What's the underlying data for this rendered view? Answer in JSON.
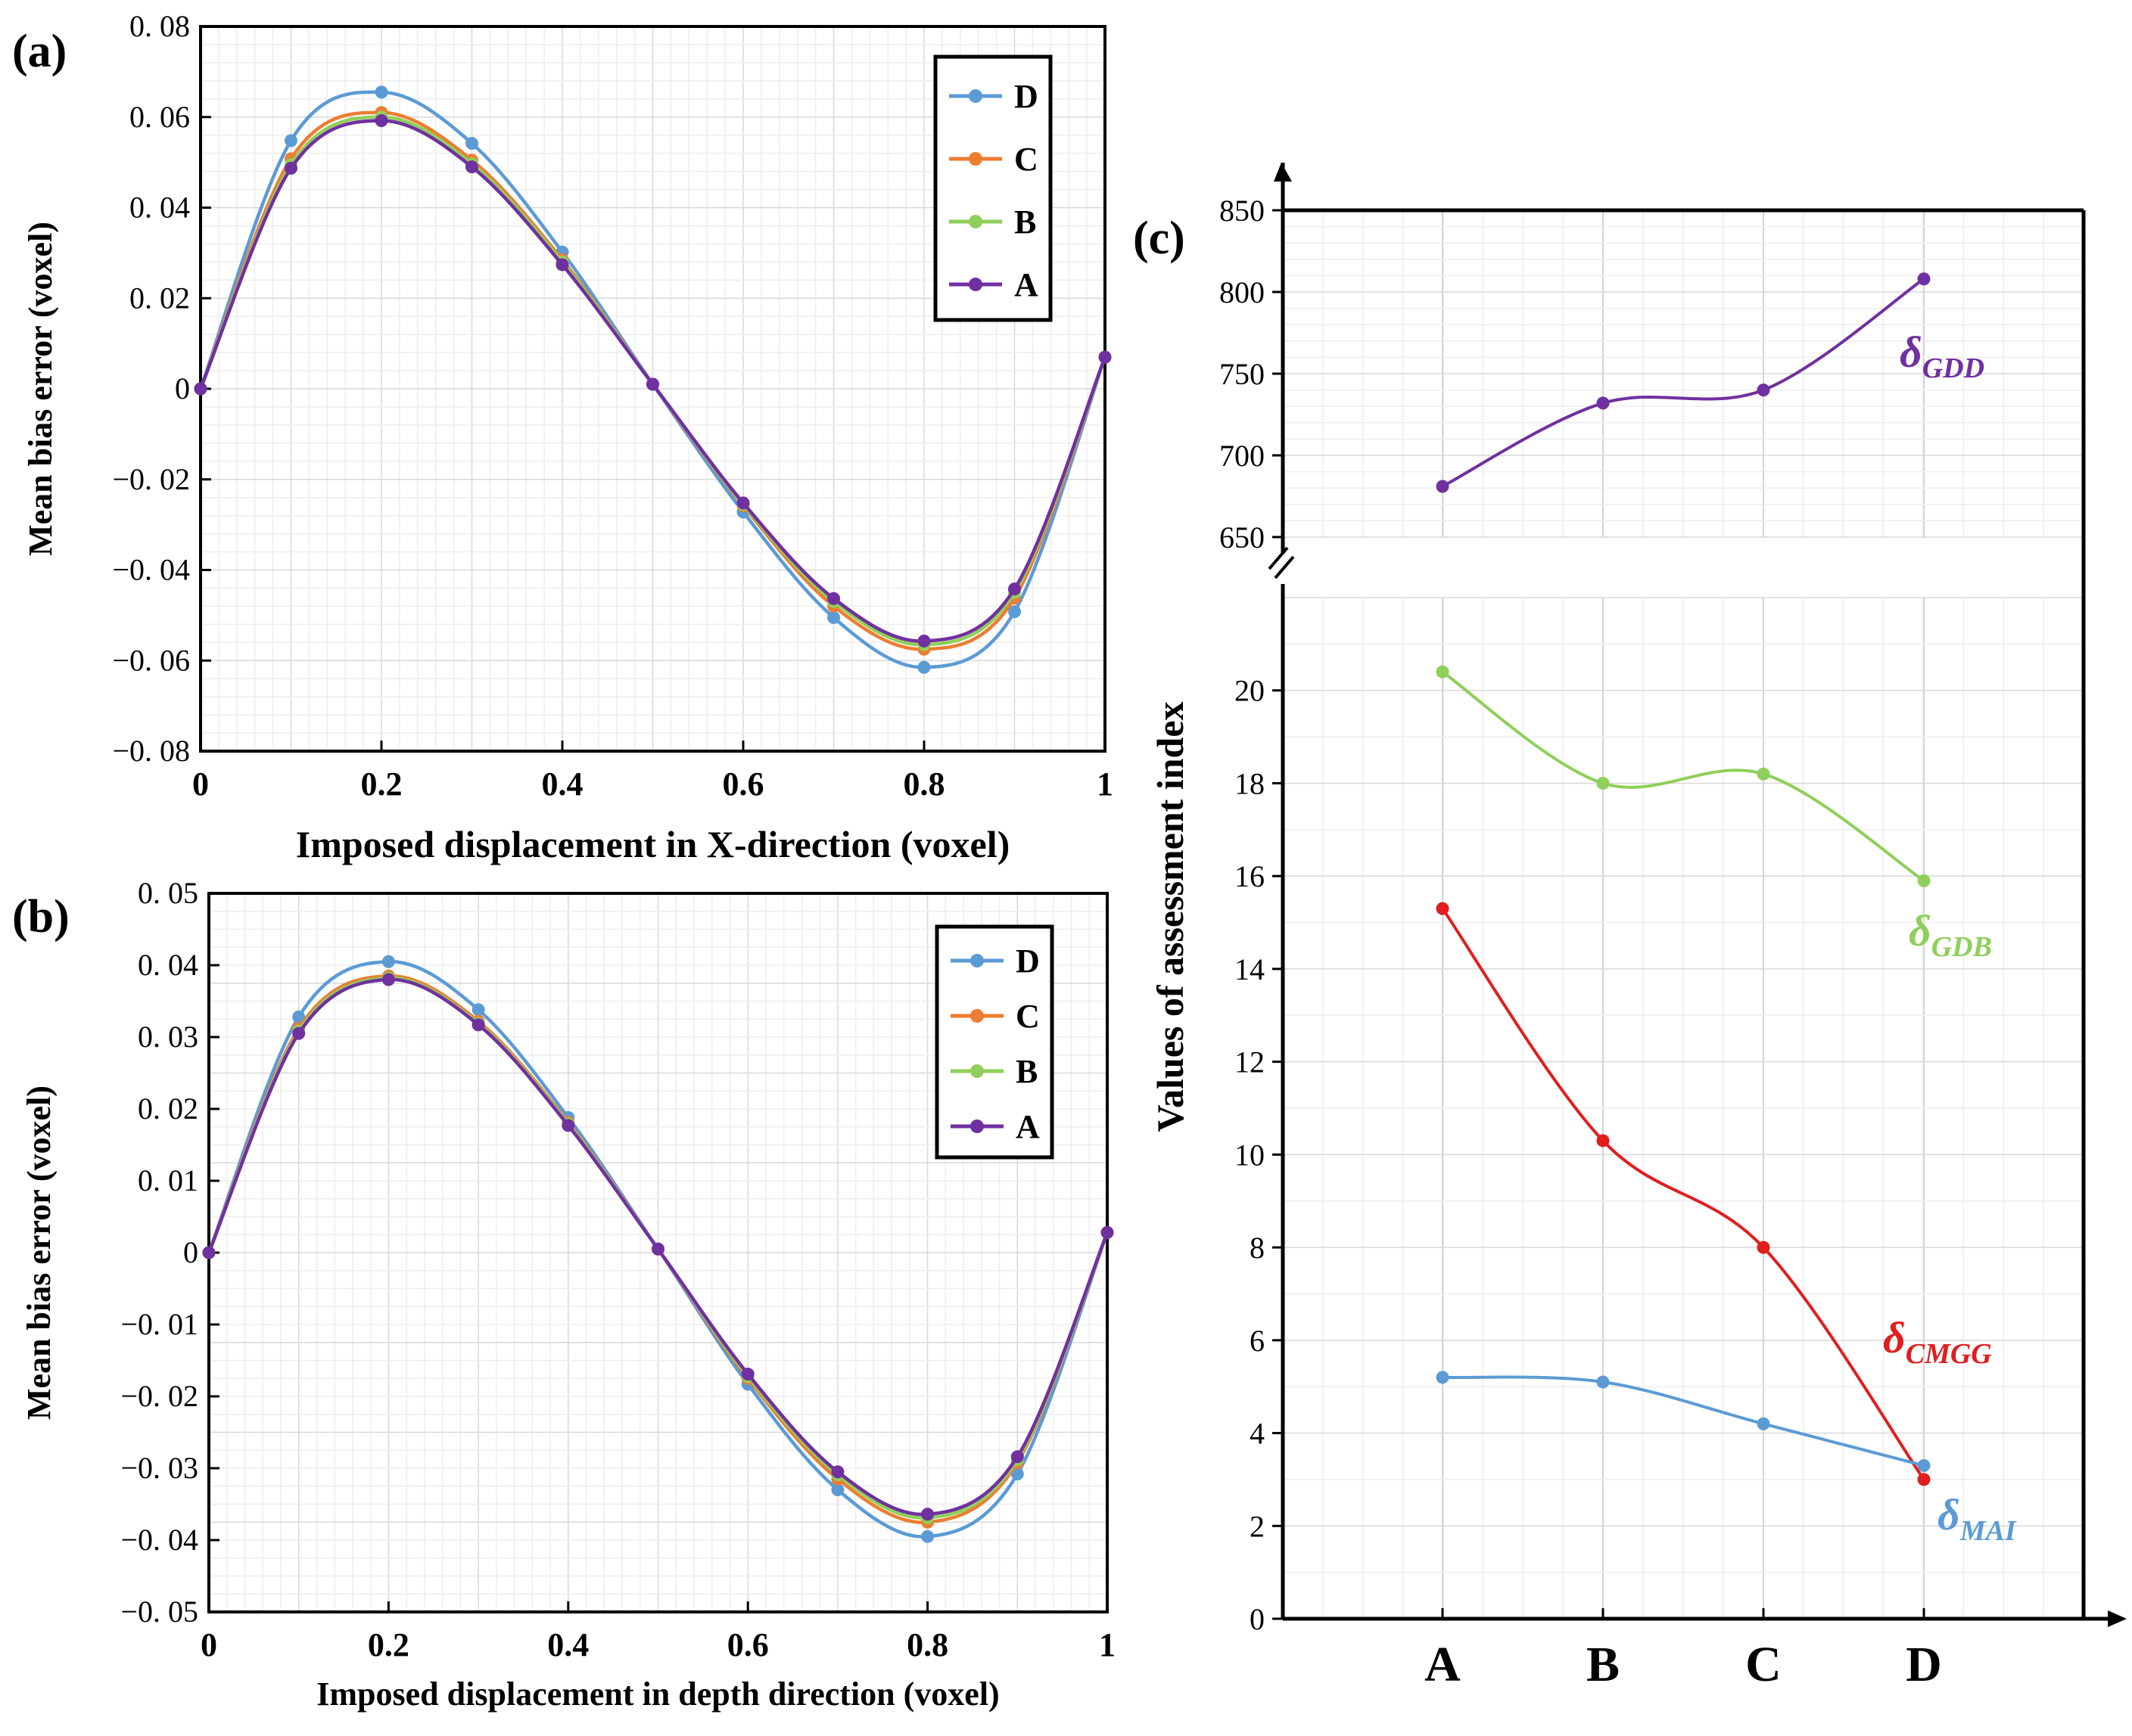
{
  "colors": {
    "D": "#5b9bd5",
    "C": "#ed7d31",
    "B": "#8fcf5a",
    "A": "#7030a0",
    "GDD": "#7030a0",
    "GDB": "#8fcf5a",
    "CMGG": "#e01e1e",
    "MAI": "#5b9bd5"
  },
  "chart_data": [
    {
      "panel": "(a)",
      "type": "line",
      "xlabel": "Imposed displacement in X-direction (voxel)",
      "ylabel": "Mean bias error (voxel)",
      "xlim": [
        0,
        1
      ],
      "ylim": [
        -0.08,
        0.08
      ],
      "xticks": [
        0,
        0.2,
        0.4,
        0.6,
        0.8,
        1
      ],
      "xtick_labels": [
        "0",
        "0.2",
        "0.4",
        "0.6",
        "0.8",
        "1"
      ],
      "yticks": [
        -0.08,
        -0.06,
        -0.04,
        -0.02,
        0,
        0.02,
        0.04,
        0.06,
        0.08
      ],
      "ytick_labels": [
        "−0. 08",
        "−0. 06",
        "−0. 04",
        "−0. 02",
        "0",
        "0. 02",
        "0. 04",
        "0. 06",
        "0. 08"
      ],
      "x": [
        0,
        0.1,
        0.2,
        0.3,
        0.4,
        0.5,
        0.6,
        0.7,
        0.8,
        0.9,
        1.0
      ],
      "series": [
        {
          "name": "D",
          "values": [
            0,
            0.0548,
            0.0655,
            0.0542,
            0.0302,
            0.001,
            -0.0272,
            -0.0505,
            -0.0615,
            -0.0492,
            0.007
          ]
        },
        {
          "name": "C",
          "values": [
            0,
            0.0508,
            0.061,
            0.0505,
            0.0285,
            0.001,
            -0.0258,
            -0.048,
            -0.0575,
            -0.0462,
            0.007
          ]
        },
        {
          "name": "B",
          "values": [
            0,
            0.0495,
            0.06,
            0.0497,
            0.028,
            0.001,
            -0.0255,
            -0.047,
            -0.0565,
            -0.045,
            0.007
          ]
        },
        {
          "name": "A",
          "values": [
            0,
            0.0487,
            0.0592,
            0.049,
            0.0274,
            0.001,
            -0.0252,
            -0.0463,
            -0.0557,
            -0.0442,
            0.007
          ]
        }
      ],
      "legend": [
        "D",
        "C",
        "B",
        "A"
      ],
      "legend_position": "top-right",
      "grid": true
    },
    {
      "panel": "(b)",
      "type": "line",
      "xlabel": "Imposed displacement in depth direction (voxel)",
      "ylabel": "Mean bias error (voxel)",
      "xlim": [
        0,
        1
      ],
      "ylim": [
        -0.05,
        0.05
      ],
      "xticks": [
        0,
        0.2,
        0.4,
        0.6,
        0.8,
        1
      ],
      "xtick_labels": [
        "0",
        "0.2",
        "0.4",
        "0.6",
        "0.8",
        "1"
      ],
      "yticks": [
        -0.05,
        -0.04,
        -0.03,
        -0.02,
        -0.01,
        0,
        0.01,
        0.02,
        0.03,
        0.04,
        0.05
      ],
      "ytick_labels": [
        "−0. 05",
        "−0. 04",
        "−0. 03",
        "−0. 02",
        "−0. 01",
        "0",
        "0. 01",
        "0. 02",
        "0. 03",
        "0. 04",
        "0. 05"
      ],
      "x": [
        0,
        0.1,
        0.2,
        0.3,
        0.4,
        0.5,
        0.6,
        0.7,
        0.8,
        0.9,
        1.0
      ],
      "series": [
        {
          "name": "D",
          "values": [
            0,
            0.0328,
            0.0405,
            0.0338,
            0.0188,
            0.0005,
            -0.0183,
            -0.033,
            -0.0395,
            -0.0308,
            0.0028
          ]
        },
        {
          "name": "C",
          "values": [
            0,
            0.0312,
            0.0385,
            0.0322,
            0.0181,
            0.0005,
            -0.0175,
            -0.0315,
            -0.0375,
            -0.0292,
            0.0028
          ]
        },
        {
          "name": "B",
          "values": [
            0,
            0.0308,
            0.0382,
            0.0319,
            0.0179,
            0.0005,
            -0.0172,
            -0.0309,
            -0.0369,
            -0.0288,
            0.0028
          ]
        },
        {
          "name": "A",
          "values": [
            0,
            0.0305,
            0.038,
            0.0317,
            0.0177,
            0.0005,
            -0.0169,
            -0.0305,
            -0.0364,
            -0.0284,
            0.0028
          ]
        }
      ],
      "legend": [
        "D",
        "C",
        "B",
        "A"
      ],
      "legend_position": "top-right",
      "grid": true
    },
    {
      "panel": "(c)",
      "type": "line",
      "ylabel": "Values of assessment index",
      "categories": [
        "A",
        "B",
        "C",
        "D"
      ],
      "broken_axis": true,
      "upper_ylim": [
        650,
        850
      ],
      "upper_yticks": [
        650,
        700,
        750,
        800,
        850
      ],
      "lower_ylim": [
        0,
        22
      ],
      "lower_yticks": [
        0,
        2,
        4,
        6,
        8,
        10,
        12,
        14,
        16,
        18,
        20
      ],
      "series": [
        {
          "name": "δGDD",
          "base": "δ",
          "sub": "GDD",
          "values": [
            681,
            732,
            740,
            808
          ],
          "axis": "upper"
        },
        {
          "name": "δGDB",
          "base": "δ",
          "sub": "GDB",
          "values": [
            20.4,
            18.0,
            18.2,
            15.9
          ],
          "axis": "lower"
        },
        {
          "name": "δCMGG",
          "base": "δ",
          "sub": "CMGG",
          "values": [
            15.3,
            10.3,
            8.0,
            3.0
          ],
          "axis": "lower"
        },
        {
          "name": "δMAI",
          "base": "δ",
          "sub": "MAI",
          "values": [
            5.2,
            5.1,
            4.2,
            3.3
          ],
          "axis": "lower"
        }
      ],
      "grid": true
    }
  ]
}
